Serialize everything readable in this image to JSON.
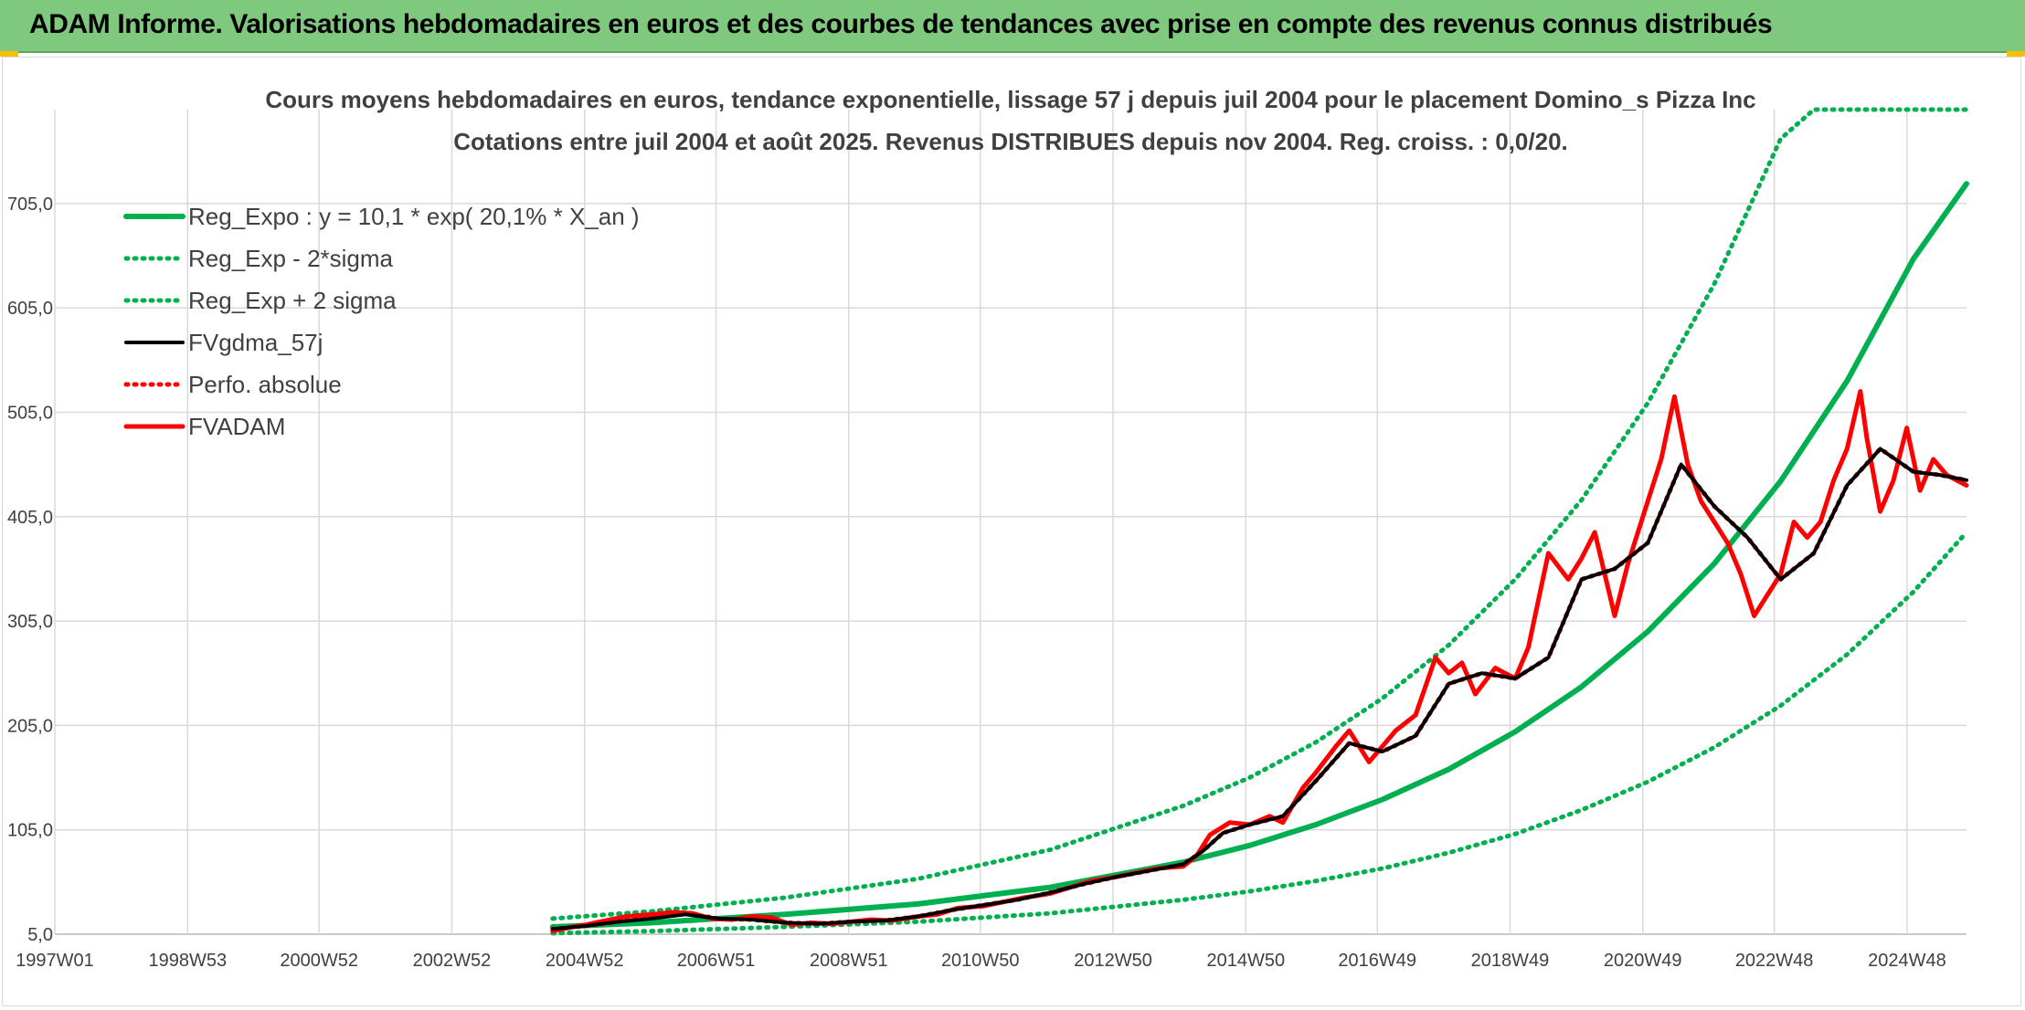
{
  "banner": {
    "title": "ADAM Informe. Valorisations hebdomadaires en euros et des courbes de tendances avec prise en compte des revenus connus distribués",
    "bg_color": "#7fc97f"
  },
  "chart_data": {
    "type": "line",
    "title": "Cours moyens hebdomadaires en euros, tendance exponentielle, lissage 57 j depuis juil 2004 pour le placement Domino_s Pizza Inc",
    "subtitle": "Cotations entre juil 2004 et août 2025. Revenus DISTRIBUES depuis nov 2004. Reg. croiss. : 0,0/20.",
    "xlabel": "",
    "ylabel": "",
    "x_ticks": [
      "1997W01",
      "1998W53",
      "2000W52",
      "2002W52",
      "2004W52",
      "2006W51",
      "2008W51",
      "2010W50",
      "2012W50",
      "2014W50",
      "2016W49",
      "2018W49",
      "2020W49",
      "2022W48",
      "2024W48"
    ],
    "x_range": [
      1997.0,
      2025.8
    ],
    "y_ticks": [
      "5,0",
      "105,0",
      "205,0",
      "305,0",
      "405,0",
      "505,0",
      "605,0",
      "705,0"
    ],
    "y_range": [
      5,
      795
    ],
    "grid": true,
    "legend_position": "top-left",
    "series": [
      {
        "name": "Reg_Expo : y = 10,1 * exp( 20,1% *  X_an )",
        "style": "solid",
        "color": "#00b050",
        "x": [
          2004.5,
          2006,
          2008,
          2010,
          2012,
          2014,
          2015,
          2016,
          2017,
          2018,
          2019,
          2020,
          2021,
          2022,
          2023,
          2024,
          2025,
          2025.8
        ],
        "y": [
          12,
          16,
          24,
          34,
          50,
          74,
          90,
          110,
          134,
          163,
          199,
          242,
          295,
          360,
          439,
          535,
          652,
          724
        ]
      },
      {
        "name": "Reg_Exp - 2*sigma",
        "style": "dotted",
        "color": "#00b050",
        "x": [
          2004.5,
          2006,
          2008,
          2010,
          2012,
          2014,
          2015,
          2016,
          2017,
          2018,
          2019,
          2020,
          2021,
          2022,
          2023,
          2024,
          2025,
          2025.8
        ],
        "y": [
          6,
          8,
          12,
          17,
          25,
          38,
          46,
          56,
          68,
          83,
          101,
          124,
          151,
          184,
          224,
          273,
          333,
          390
        ]
      },
      {
        "name": "Reg_Exp + 2 sigma",
        "style": "dotted",
        "color": "#00b050",
        "x": [
          2004.5,
          2006,
          2008,
          2010,
          2012,
          2014,
          2015,
          2016,
          2017,
          2018,
          2019,
          2020,
          2021,
          2022,
          2023,
          2023.5,
          2025.8
        ],
        "y": [
          20,
          27,
          40,
          58,
          86,
          128,
          155,
          189,
          231,
          282,
          345,
          421,
          514,
          628,
          767,
          795,
          795
        ]
      },
      {
        "name": "FVgdma_57j",
        "style": "solid",
        "color": "#000000",
        "x": [
          2004.5,
          2005,
          2005.5,
          2006,
          2006.5,
          2007,
          2007.5,
          2008,
          2008.5,
          2009,
          2009.5,
          2010,
          2010.5,
          2011,
          2011.5,
          2012,
          2012.5,
          2013,
          2013.5,
          2014,
          2014.3,
          2014.6,
          2015,
          2015.5,
          2016,
          2016.5,
          2017,
          2017.5,
          2018,
          2018.5,
          2019,
          2019.5,
          2020,
          2020.5,
          2021,
          2021.5,
          2022,
          2022.5,
          2023,
          2023.5,
          2024,
          2024.5,
          2025,
          2025.4,
          2025.8
        ],
        "y": [
          10,
          13,
          17,
          20,
          24,
          20,
          19,
          16,
          15,
          17,
          18,
          22,
          28,
          33,
          38,
          45,
          53,
          60,
          66,
          72,
          85,
          102,
          110,
          118,
          152,
          188,
          180,
          195,
          245,
          255,
          250,
          270,
          345,
          355,
          380,
          455,
          415,
          385,
          345,
          370,
          435,
          470,
          448,
          445,
          440
        ]
      },
      {
        "name": "Perfo. absolue",
        "style": "dotted",
        "color": "#ff0000",
        "x": [
          2004.5,
          2005,
          2005.5,
          2006,
          2006.5,
          2007,
          2007.5,
          2008,
          2008.5,
          2009,
          2009.5,
          2010,
          2010.5,
          2011,
          2011.5,
          2012,
          2012.5,
          2013,
          2013.5,
          2014,
          2014.3,
          2014.6,
          2015,
          2015.5,
          2016,
          2016.5,
          2017,
          2017.5,
          2018,
          2018.5,
          2019,
          2019.5,
          2020,
          2020.5,
          2021,
          2021.5,
          2022,
          2022.5,
          2023,
          2023.5,
          2024,
          2024.5,
          2025,
          2025.4,
          2025.8
        ],
        "y": [
          10,
          13,
          17,
          21,
          25,
          20,
          19,
          16,
          15,
          17,
          18,
          22,
          28,
          33,
          38,
          45,
          53,
          60,
          66,
          72,
          85,
          102,
          110,
          118,
          152,
          188,
          180,
          195,
          245,
          255,
          250,
          270,
          345,
          355,
          380,
          455,
          415,
          385,
          345,
          370,
          435,
          470,
          448,
          445,
          440
        ]
      },
      {
        "name": "FVADAM",
        "style": "solid",
        "color": "#ff0000",
        "x": [
          2004.5,
          2004.8,
          2005,
          2005.3,
          2005.6,
          2006,
          2006.3,
          2006.6,
          2006.9,
          2007.2,
          2007.5,
          2007.8,
          2008.1,
          2008.4,
          2008.7,
          2009,
          2009.3,
          2009.6,
          2010,
          2010.3,
          2010.6,
          2011,
          2011.3,
          2011.6,
          2012,
          2012.3,
          2012.6,
          2013,
          2013.3,
          2013.6,
          2014,
          2014.2,
          2014.4,
          2014.7,
          2015,
          2015.3,
          2015.5,
          2015.8,
          2016,
          2016.3,
          2016.5,
          2016.8,
          2017,
          2017.2,
          2017.5,
          2017.8,
          2018,
          2018.2,
          2018.4,
          2018.7,
          2019,
          2019.2,
          2019.5,
          2019.8,
          2020,
          2020.2,
          2020.5,
          2020.7,
          2021,
          2021.2,
          2021.4,
          2021.6,
          2021.8,
          2022,
          2022.2,
          2022.4,
          2022.6,
          2022.8,
          2023,
          2023.2,
          2023.4,
          2023.6,
          2023.8,
          2024,
          2024.2,
          2024.3,
          2024.5,
          2024.7,
          2024.9,
          2025.1,
          2025.3,
          2025.5,
          2025.8
        ],
        "y": [
          8,
          12,
          14,
          18,
          22,
          24,
          26,
          25,
          20,
          19,
          22,
          21,
          14,
          16,
          15,
          17,
          19,
          18,
          22,
          24,
          30,
          32,
          36,
          40,
          44,
          50,
          56,
          60,
          64,
          68,
          70,
          80,
          100,
          112,
          110,
          118,
          112,
          145,
          160,
          185,
          200,
          170,
          185,
          200,
          215,
          270,
          255,
          265,
          235,
          260,
          250,
          280,
          370,
          345,
          365,
          390,
          310,
          360,
          420,
          460,
          520,
          455,
          420,
          400,
          380,
          350,
          310,
          330,
          350,
          400,
          385,
          400,
          440,
          470,
          525,
          480,
          410,
          440,
          490,
          430,
          460,
          445,
          435
        ]
      }
    ]
  }
}
